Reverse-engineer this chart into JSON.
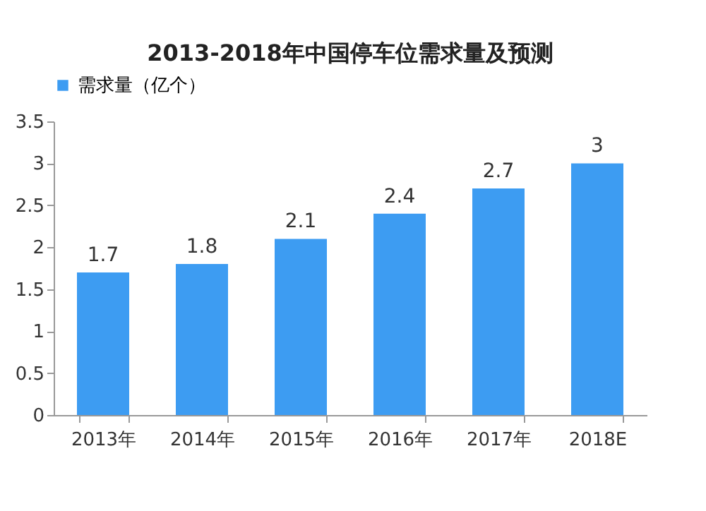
{
  "chart_data": {
    "type": "bar",
    "title": "2013-2018年中国停车位需求量及预测",
    "categories": [
      "2013年",
      "2014年",
      "2015年",
      "2016年",
      "2017年",
      "2018E"
    ],
    "series": [
      {
        "name": "需求量（亿个）",
        "color": "#3d9cf2",
        "values": [
          1.7,
          1.8,
          2.1,
          2.4,
          2.7,
          3
        ]
      }
    ],
    "ylim": [
      0,
      3.5
    ],
    "yticks": [
      0,
      0.5,
      1,
      1.5,
      2,
      2.5,
      3,
      3.5
    ],
    "grid": false,
    "legend": "top",
    "data_labels": true
  }
}
